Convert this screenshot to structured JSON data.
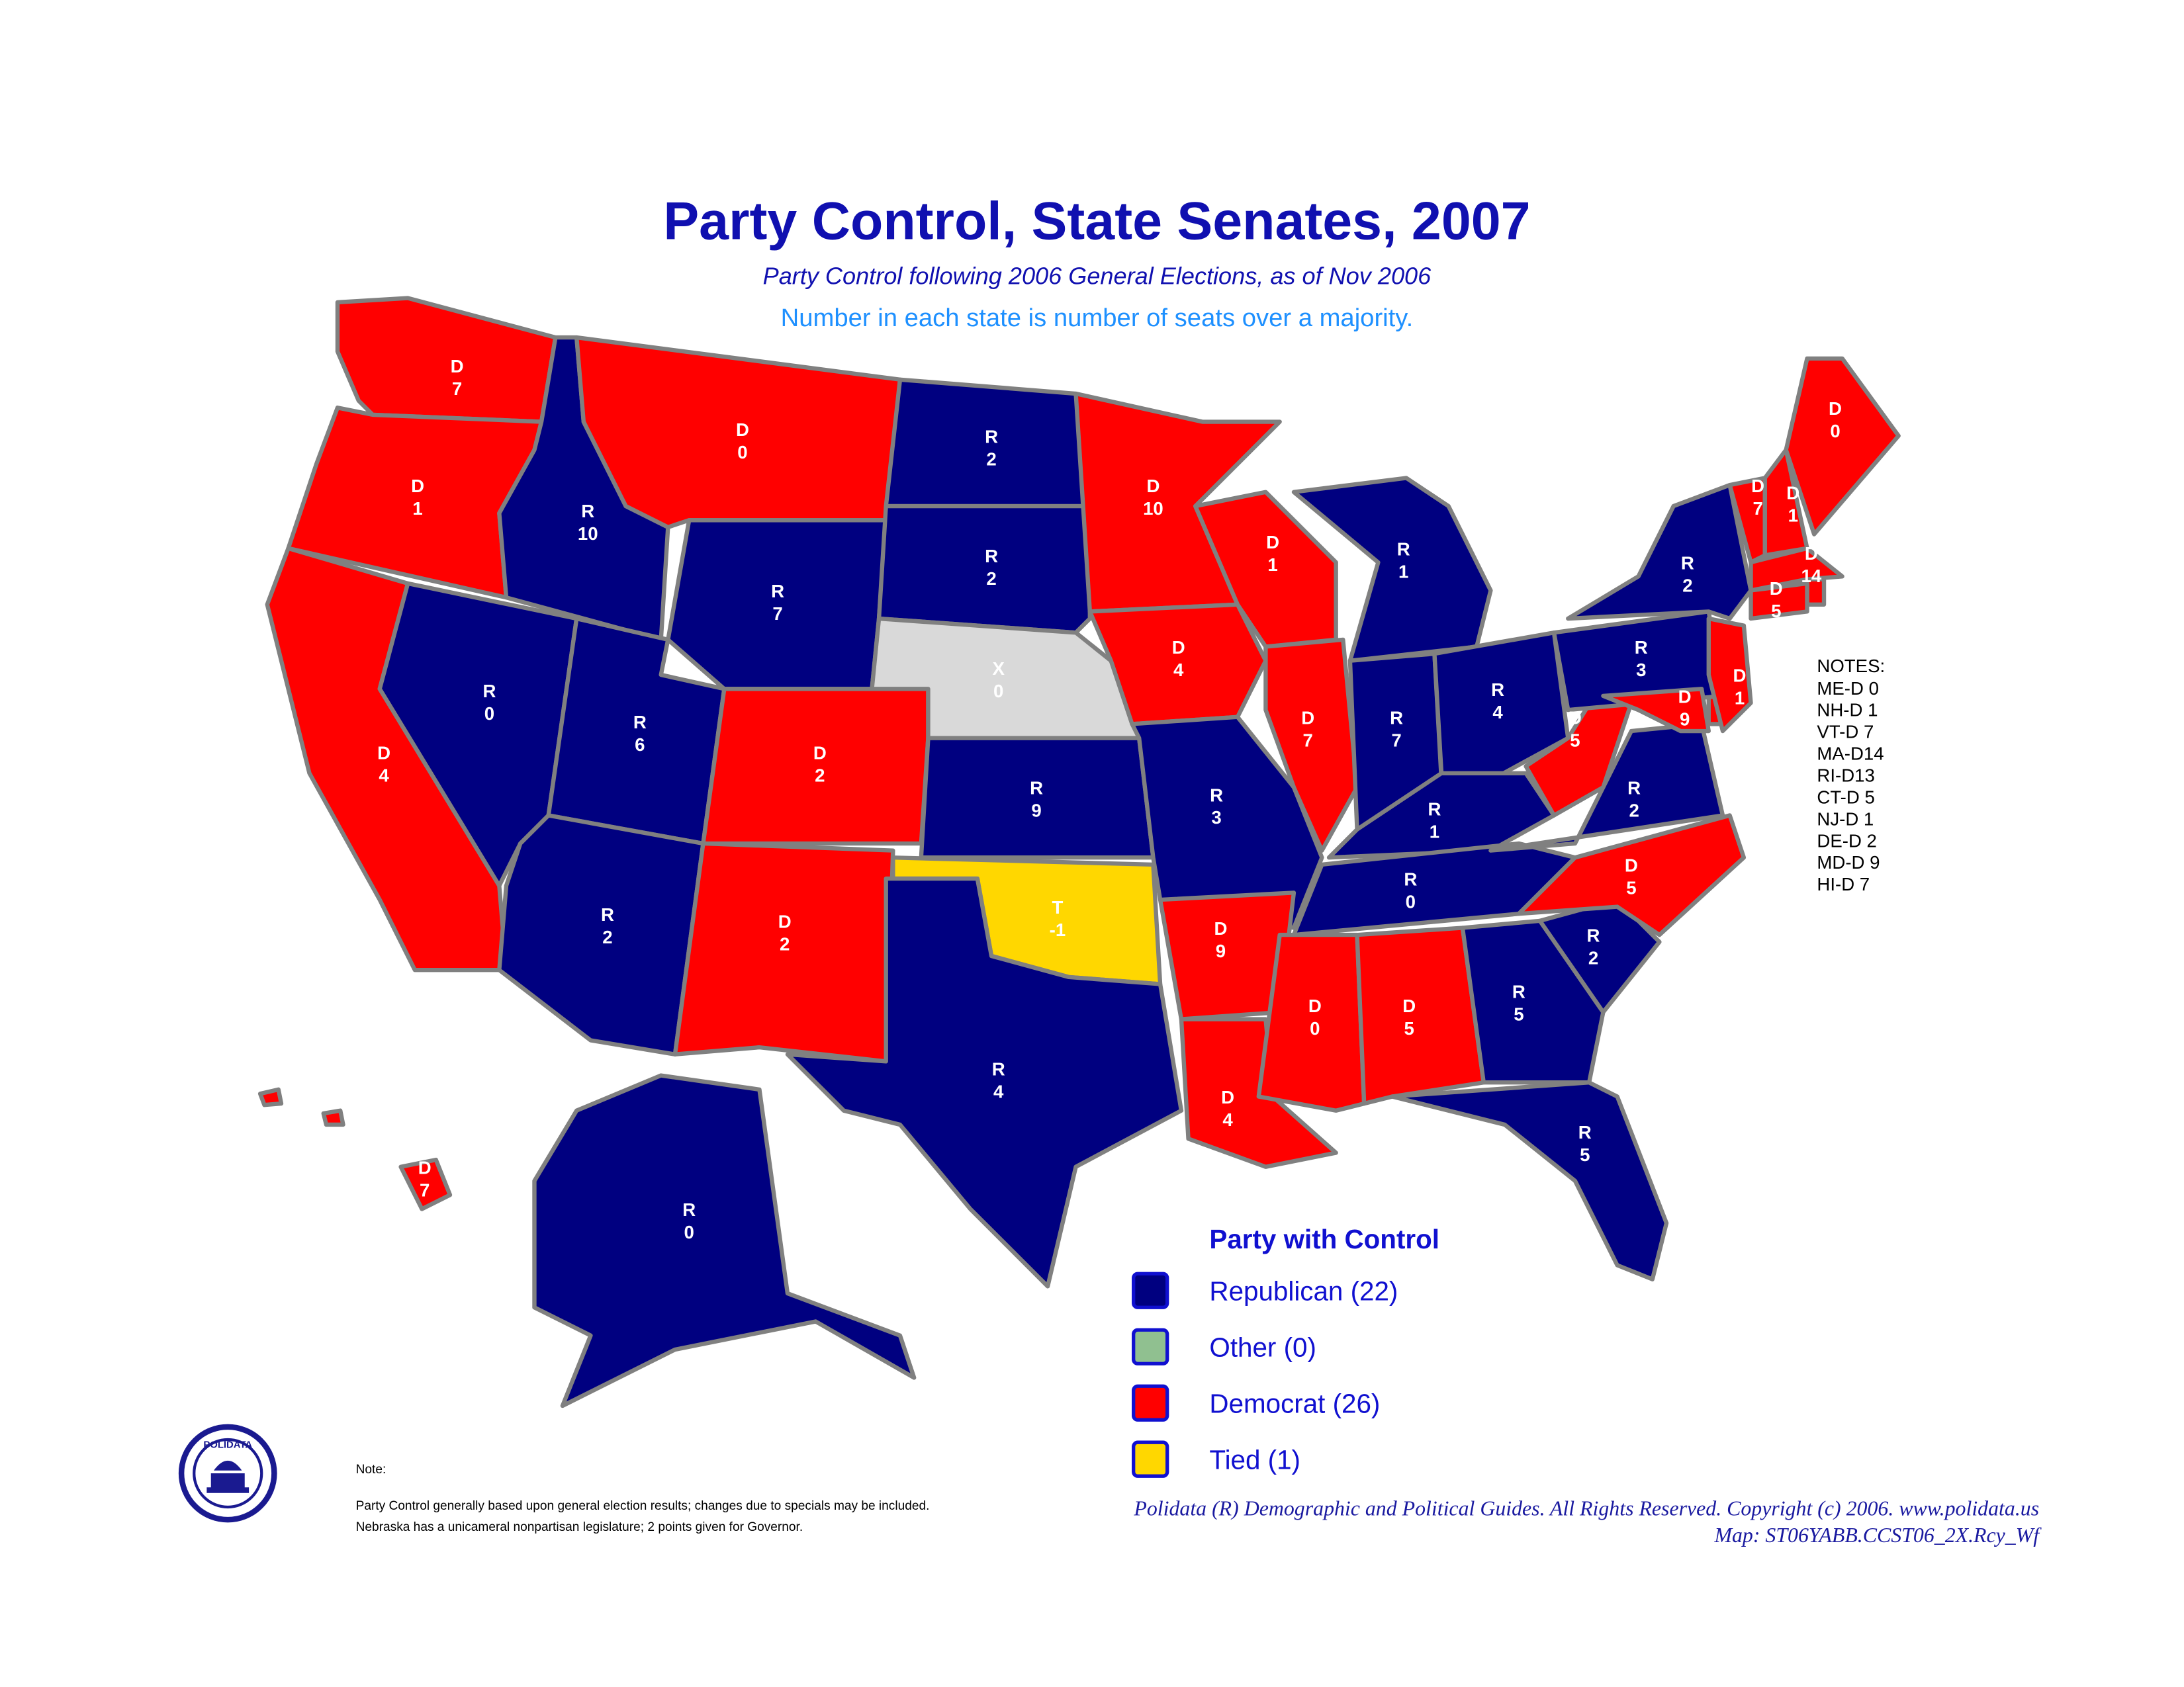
{
  "header": {
    "title": "Party Control, State Senates, 2007",
    "subtitle": "Party Control following 2006 General Elections, as of Nov 2006",
    "description": "Number in each state is number of seats over a majority."
  },
  "states": [
    {
      "party": "D",
      "seats": 7,
      "color": "#ff0000"
    },
    {
      "party": "D",
      "seats": 1,
      "color": "#ff0000"
    },
    {
      "party": "D",
      "seats": 4,
      "color": "#ff0000"
    },
    {
      "party": "R",
      "seats": 10,
      "color": "#000080"
    },
    {
      "party": "R",
      "seats": 0,
      "color": "#000080"
    },
    {
      "party": "R",
      "seats": 6,
      "color": "#000080"
    },
    {
      "party": "R",
      "seats": 2,
      "color": "#000080"
    },
    {
      "party": "D",
      "seats": 0,
      "color": "#ff0000"
    },
    {
      "party": "R",
      "seats": 7,
      "color": "#000080"
    },
    {
      "party": "D",
      "seats": 2,
      "color": "#ff0000"
    },
    {
      "party": "D",
      "seats": 2,
      "color": "#ff0000"
    },
    {
      "party": "R",
      "seats": 2,
      "color": "#000080"
    },
    {
      "party": "R",
      "seats": 2,
      "color": "#000080"
    },
    {
      "party": "X",
      "seats": 0,
      "color": "#d9d9d9"
    },
    {
      "party": "R",
      "seats": 9,
      "color": "#000080"
    },
    {
      "party": "T",
      "seats": -1,
      "color": "#ffd700"
    },
    {
      "party": "R",
      "seats": 4,
      "color": "#000080"
    },
    {
      "party": "D",
      "seats": 10,
      "color": "#ff0000"
    },
    {
      "party": "D",
      "seats": 4,
      "color": "#ff0000"
    },
    {
      "party": "R",
      "seats": 3,
      "color": "#000080"
    },
    {
      "party": "D",
      "seats": 9,
      "color": "#ff0000"
    },
    {
      "party": "D",
      "seats": 4,
      "color": "#ff0000"
    },
    {
      "party": "D",
      "seats": 1,
      "color": "#ff0000"
    },
    {
      "party": "D",
      "seats": 7,
      "color": "#ff0000"
    },
    {
      "party": "R",
      "seats": 1,
      "color": "#000080"
    },
    {
      "party": "R",
      "seats": 7,
      "color": "#000080"
    },
    {
      "party": "R",
      "seats": 4,
      "color": "#000080"
    },
    {
      "party": "R",
      "seats": 1,
      "color": "#000080"
    },
    {
      "party": "R",
      "seats": 0,
      "color": "#000080"
    },
    {
      "party": "D",
      "seats": 0,
      "color": "#ff0000"
    },
    {
      "party": "D",
      "seats": 5,
      "color": "#ff0000"
    },
    {
      "party": "R",
      "seats": 5,
      "color": "#000080"
    },
    {
      "party": "R",
      "seats": 5,
      "color": "#000080"
    },
    {
      "party": "R",
      "seats": 2,
      "color": "#000080"
    },
    {
      "party": "D",
      "seats": 5,
      "color": "#ff0000"
    },
    {
      "party": "R",
      "seats": 2,
      "color": "#000080"
    },
    {
      "party": "D",
      "seats": 5,
      "color": "#ff0000"
    },
    {
      "party": "R",
      "seats": 3,
      "color": "#000080"
    },
    {
      "party": "R",
      "seats": 2,
      "color": "#000080"
    },
    {
      "party": "D",
      "seats": 7,
      "color": "#ff0000"
    },
    {
      "party": "D",
      "seats": 1,
      "color": "#ff0000"
    },
    {
      "party": "D",
      "seats": 0,
      "color": "#ff0000"
    },
    {
      "party": "D",
      "seats": 14,
      "color": "#ff0000"
    },
    {
      "party": "D",
      "seats": 5,
      "color": "#ff0000"
    },
    {
      "party": "D",
      "seats": 1,
      "color": "#ff0000"
    },
    {
      "party": "D",
      "seats": 9,
      "color": "#ff0000"
    },
    {
      "party": "D",
      "seats": 7,
      "color": "#ff0000"
    },
    {
      "party": "R",
      "seats": 0,
      "color": "#000080"
    }
  ],
  "notes": {
    "title": "NOTES:",
    "items": [
      "ME-D 0",
      "NH-D 1",
      "VT-D 7",
      "MA-D14",
      "RI-D13",
      "CT-D 5",
      "NJ-D 1",
      "DE-D 2",
      "MD-D 9",
      "HI-D 7"
    ]
  },
  "legend": {
    "title": "Party with Control",
    "items": [
      {
        "label": "Republican (22)",
        "color": "#000080"
      },
      {
        "label": "Other (0)",
        "color": "#90c090"
      },
      {
        "label": "Democrat (26)",
        "color": "#ff0000"
      },
      {
        "label": "Tied (1)",
        "color": "#ffd700"
      }
    ]
  },
  "footer": {
    "note_title": "Note:",
    "note_lines": [
      "Party Control generally based upon general election results; changes due to specials may be included.",
      "Nebraska has a unicameral nonpartisan legislature;  2 points given for Governor."
    ],
    "copyright": "Polidata (R) Demographic and Political Guides. All Rights Reserved. Copyright (c) 2006. www.polidata.us",
    "map_id": "Map: ST06YABB.CCST06_2X.Rcy_Wf",
    "logo": "POLIDATA"
  }
}
